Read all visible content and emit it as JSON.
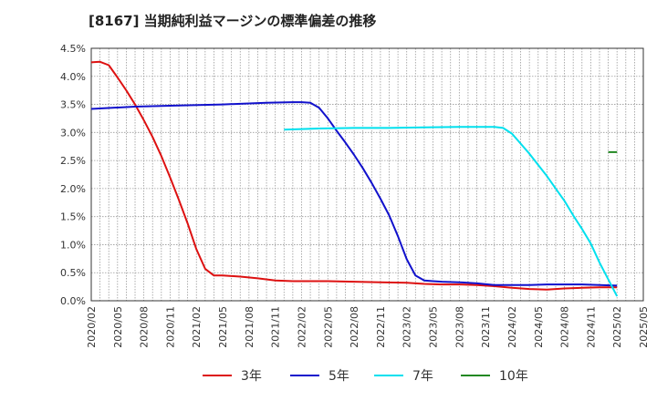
{
  "chart_data": {
    "type": "line",
    "title": "[8167]  当期純利益マージンの標準偏差の推移",
    "xlabel": "",
    "ylabel": "",
    "ylim": [
      0,
      4.5
    ],
    "y_ticks": [
      "0.0%",
      "0.5%",
      "1.0%",
      "1.5%",
      "2.0%",
      "2.5%",
      "3.0%",
      "3.5%",
      "4.0%",
      "4.5%"
    ],
    "x_ticks": [
      "2020/02",
      "2020/05",
      "2020/08",
      "2020/11",
      "2021/02",
      "2021/05",
      "2021/08",
      "2021/11",
      "2022/02",
      "2022/05",
      "2022/08",
      "2022/11",
      "2023/02",
      "2023/05",
      "2023/08",
      "2023/11",
      "2024/02",
      "2024/05",
      "2024/08",
      "2024/11",
      "2025/02",
      "2025/05"
    ],
    "x_unit": "months since 2020/02",
    "series": [
      {
        "name": "3年",
        "color": "#dd1111",
        "x": [
          0,
          1,
          2,
          3,
          4,
          5,
          6,
          7,
          8,
          9,
          10,
          11,
          12,
          13,
          14,
          15,
          17,
          19,
          21,
          23,
          25,
          27,
          30,
          33,
          36,
          38,
          40,
          42,
          44,
          46,
          48,
          50,
          52,
          54,
          56,
          58,
          60
        ],
        "values": [
          4.25,
          4.26,
          4.2,
          3.98,
          3.75,
          3.5,
          3.22,
          2.92,
          2.58,
          2.2,
          1.8,
          1.38,
          0.92,
          0.57,
          0.45,
          0.45,
          0.43,
          0.4,
          0.36,
          0.35,
          0.35,
          0.35,
          0.34,
          0.33,
          0.32,
          0.3,
          0.29,
          0.29,
          0.28,
          0.26,
          0.23,
          0.21,
          0.2,
          0.22,
          0.23,
          0.24,
          0.24
        ]
      },
      {
        "name": "5年",
        "color": "#1111cc",
        "x": [
          0,
          5,
          10,
          15,
          20,
          23,
          24,
          25,
          26,
          27,
          28,
          29,
          30,
          31,
          32,
          33,
          34,
          35,
          36,
          37,
          38,
          39,
          40,
          42,
          44,
          46,
          48,
          50,
          52,
          54,
          56,
          58,
          60
        ],
        "values": [
          3.42,
          3.46,
          3.48,
          3.5,
          3.53,
          3.54,
          3.54,
          3.53,
          3.44,
          3.25,
          3.03,
          2.82,
          2.6,
          2.36,
          2.1,
          1.82,
          1.52,
          1.15,
          0.74,
          0.45,
          0.36,
          0.35,
          0.34,
          0.33,
          0.31,
          0.28,
          0.28,
          0.28,
          0.29,
          0.29,
          0.29,
          0.28,
          0.27
        ]
      },
      {
        "name": "7年",
        "color": "#00e0ee",
        "x": [
          22,
          26,
          30,
          34,
          38,
          42,
          46,
          47,
          48,
          49,
          50,
          51,
          52,
          53,
          54,
          55,
          56,
          57,
          58,
          59,
          60
        ],
        "values": [
          3.05,
          3.07,
          3.08,
          3.08,
          3.09,
          3.1,
          3.1,
          3.08,
          2.98,
          2.8,
          2.62,
          2.42,
          2.22,
          2.0,
          1.78,
          1.52,
          1.28,
          1.02,
          0.68,
          0.38,
          0.08
        ]
      },
      {
        "name": "10年",
        "color": "#228822",
        "x": [
          59,
          60
        ],
        "values": [
          2.65,
          2.65
        ]
      }
    ],
    "legend": "bottom"
  }
}
